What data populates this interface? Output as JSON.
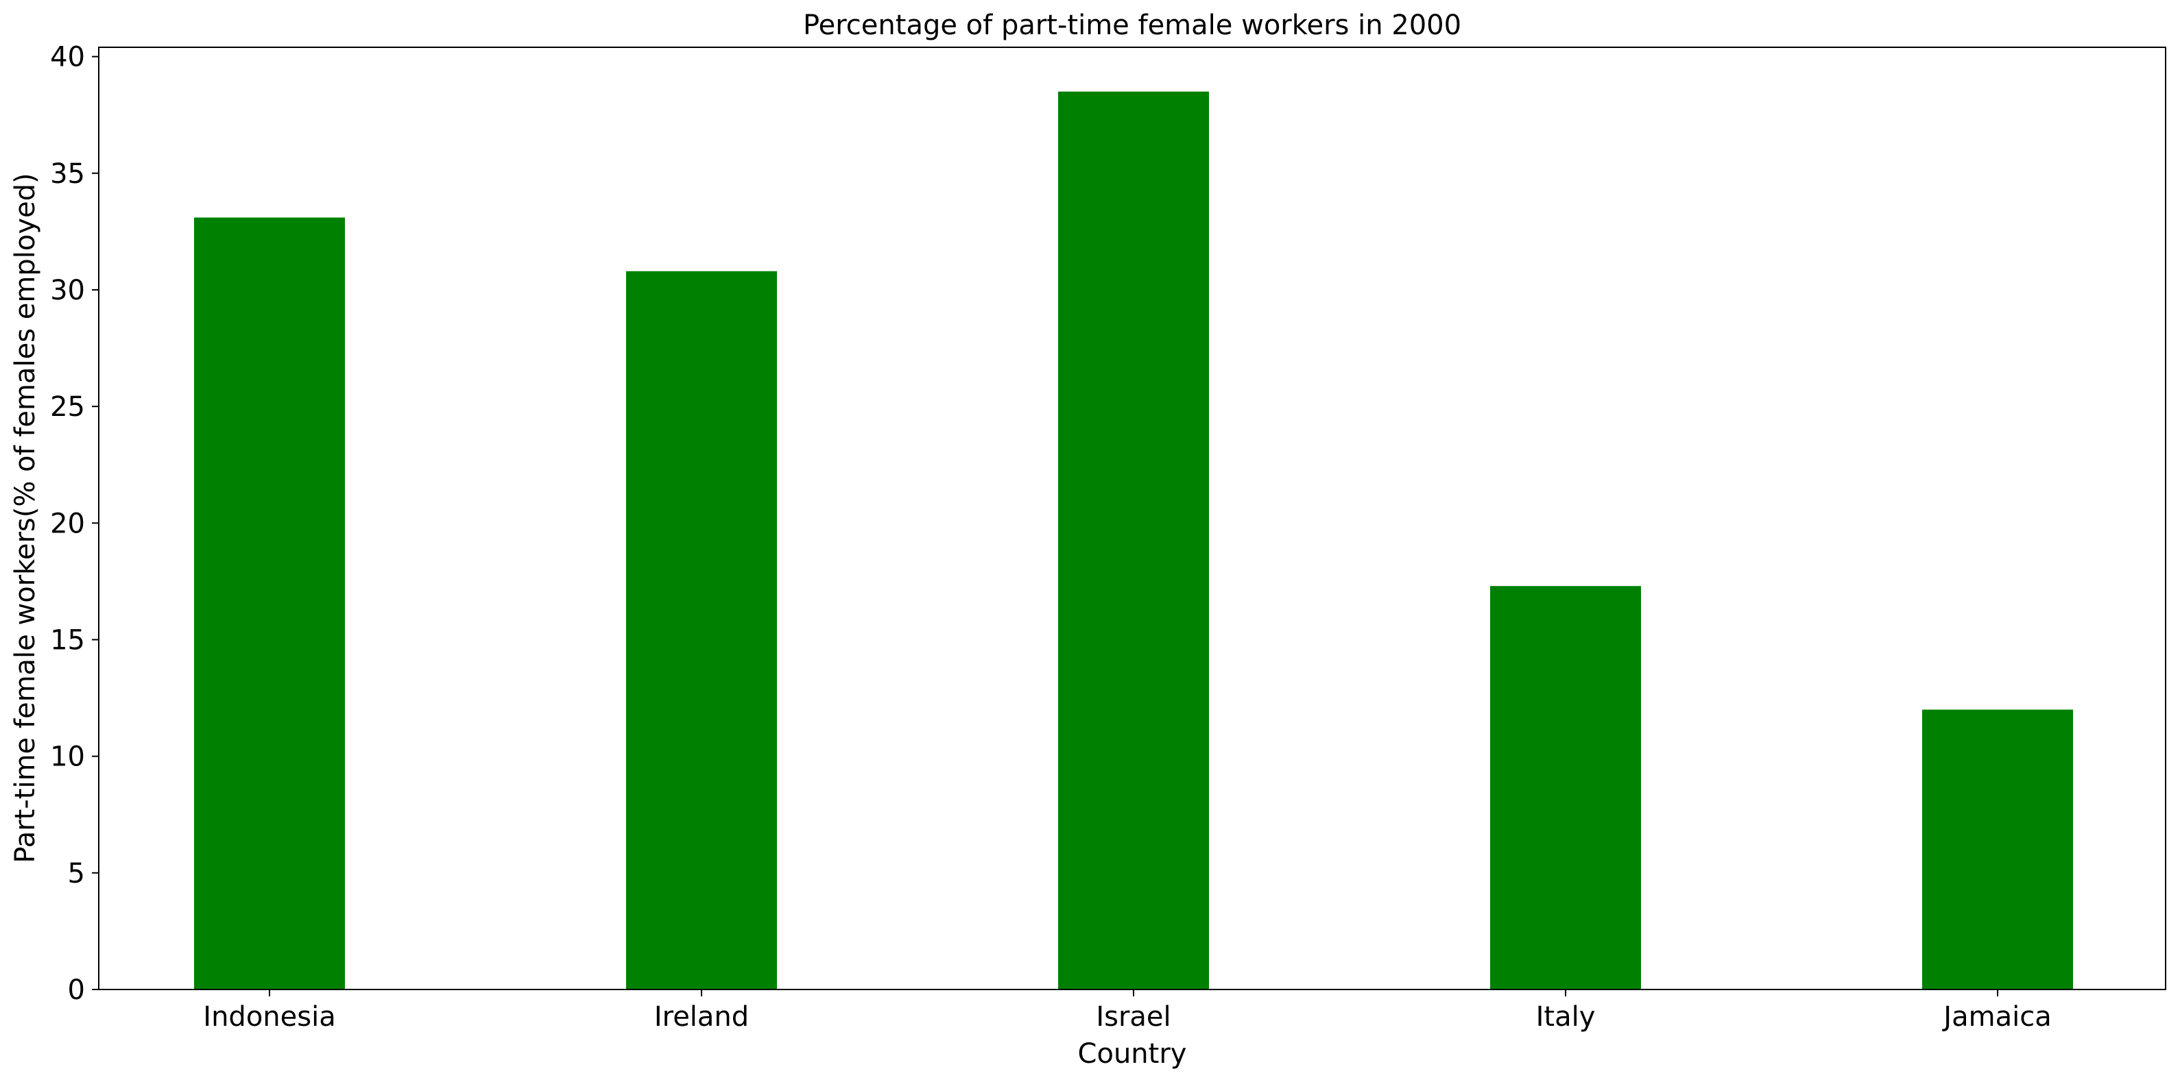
{
  "chart_data": {
    "type": "bar",
    "title": "Percentage of part-time female workers in 2000",
    "xlabel": "Country",
    "ylabel": "Part-time female workers(% of females employed)",
    "categories": [
      "Indonesia",
      "Ireland",
      "Israel",
      "Italy",
      "Jamaica"
    ],
    "values": [
      33.1,
      30.8,
      38.5,
      17.3,
      12.0
    ],
    "ylim": [
      0,
      40.4
    ],
    "yticks": [
      0,
      5,
      10,
      15,
      20,
      25,
      30,
      35,
      40
    ],
    "grid": false,
    "legend": "none",
    "bar_color": "#008000"
  }
}
